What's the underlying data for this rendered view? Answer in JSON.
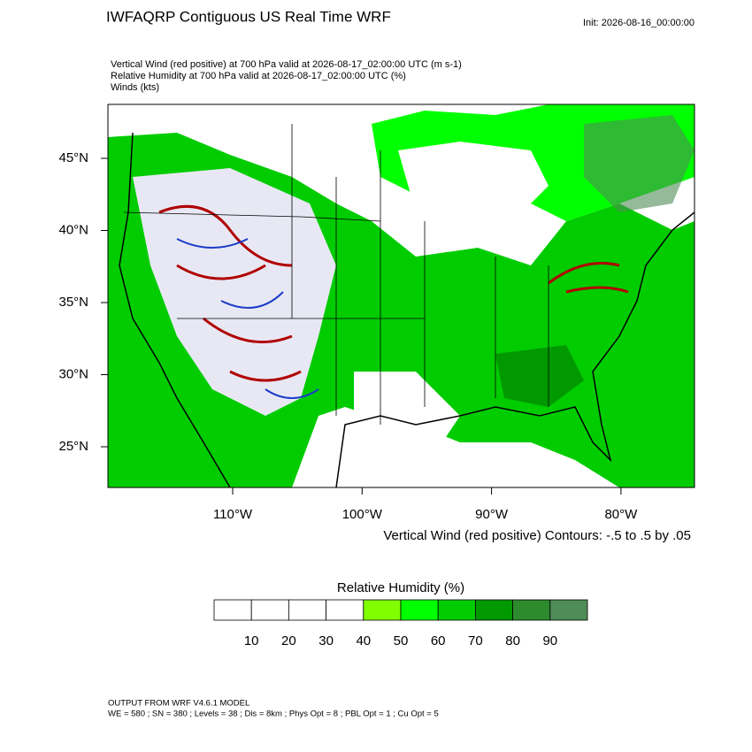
{
  "header": {
    "title": "IWFAQRP Contiguous US Real Time WRF",
    "init": "Init: 2026-08-16_00:00:00"
  },
  "fields": [
    "Vertical Wind (red positive) at 700 hPa valid at 2026-08-17_02:00:00 UTC   (m s-1)",
    "Relative Humidity at 700 hPa valid at 2026-08-17_02:00:00 UTC   (%)",
    "Winds   (kts)"
  ],
  "map": {
    "lat_labels": [
      "45°N",
      "40°N",
      "35°N",
      "30°N",
      "25°N"
    ],
    "lon_labels": [
      "110°W",
      "100°W",
      "90°W",
      "80°W"
    ],
    "contour_note": "Vertical Wind (red positive) Contours: -.5 to .5 by .05"
  },
  "colorbar": {
    "title": "Relative Humidity  (%)",
    "levels": [
      10,
      20,
      30,
      40,
      50,
      60,
      70,
      80,
      90
    ],
    "colors": [
      "#ffffff",
      "#ffffff",
      "#ffffff",
      "#ffffff",
      "#80ff00",
      "#00ff00",
      "#00cc00",
      "#009900",
      "#2d8b2d",
      "#4f8c57"
    ]
  },
  "footer": [
    "OUTPUT FROM WRF V4.6.1 MODEL",
    "WE = 580 ; SN = 380 ; Levels = 38 ; Dis = 8km ; Phys Opt = 8 ; PBL Opt = 1 ; Cu Opt = 5"
  ]
}
